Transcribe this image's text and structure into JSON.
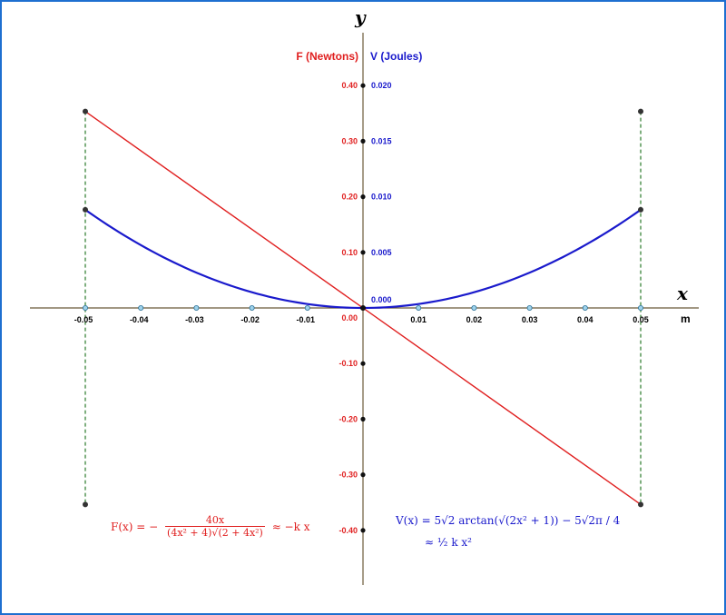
{
  "chart_data": {
    "type": "line",
    "x_axis_letter": "x",
    "y_axis_letter": "y",
    "x_unit": "m",
    "xlim": [
      -0.05,
      0.05
    ],
    "f_label": "F  (Newtons)",
    "v_label": "V  (Joules)",
    "f_ylim": [
      -0.4,
      0.4
    ],
    "v_ylim": [
      -0.02,
      0.02
    ],
    "x_ticks": [
      -0.05,
      -0.04,
      -0.03,
      -0.02,
      -0.01,
      0.01,
      0.02,
      0.03,
      0.04,
      0.05
    ],
    "x_tick_labels": [
      "-0.05",
      "-0.04",
      "-0.03",
      "-0.02",
      "-0.01",
      "0.01",
      "0.02",
      "0.03",
      "0.04",
      "0.05"
    ],
    "f_ticks": [
      0.4,
      0.3,
      0.2,
      0.1,
      0.0,
      -0.1,
      -0.2,
      -0.3,
      -0.4
    ],
    "f_tick_labels": [
      "0.40",
      "0.30",
      "0.20",
      "0.10",
      "0.00",
      "-0.10",
      "-0.20",
      "-0.30",
      "-0.40"
    ],
    "v_ticks": [
      0.02,
      0.015,
      0.01,
      0.005,
      0.0
    ],
    "v_tick_labels": [
      "0.020",
      "0.015",
      "0.010",
      "0.005",
      "0.000"
    ],
    "series": [
      {
        "name": "F",
        "color": "#e02020",
        "axis": "F",
        "x": [
          -0.05,
          0.05
        ],
        "y": [
          0.3535,
          -0.3535
        ]
      },
      {
        "name": "V",
        "color": "#1a1acc",
        "axis": "V",
        "x": [
          -0.05,
          -0.04,
          -0.03,
          -0.02,
          -0.01,
          0.0,
          0.01,
          0.02,
          0.03,
          0.04,
          0.05
        ],
        "y": [
          0.00883,
          0.00566,
          0.00318,
          0.00141,
          0.00035,
          0.0,
          0.00035,
          0.00141,
          0.00318,
          0.00566,
          0.00883
        ]
      }
    ],
    "bounds_x": [
      -0.05,
      0.05
    ],
    "grid": false,
    "f_formula": {
      "lhs": "F(x) = −",
      "num": "40x",
      "den": "(4x² + 4)√(2 + 4x²)",
      "rhs": "≈ −k x"
    },
    "v_formula": {
      "line1": "V(x) = 5√2 arctan(√(2x² + 1)) − 5√2π / 4",
      "line2": "≈ ½ k x²"
    }
  }
}
